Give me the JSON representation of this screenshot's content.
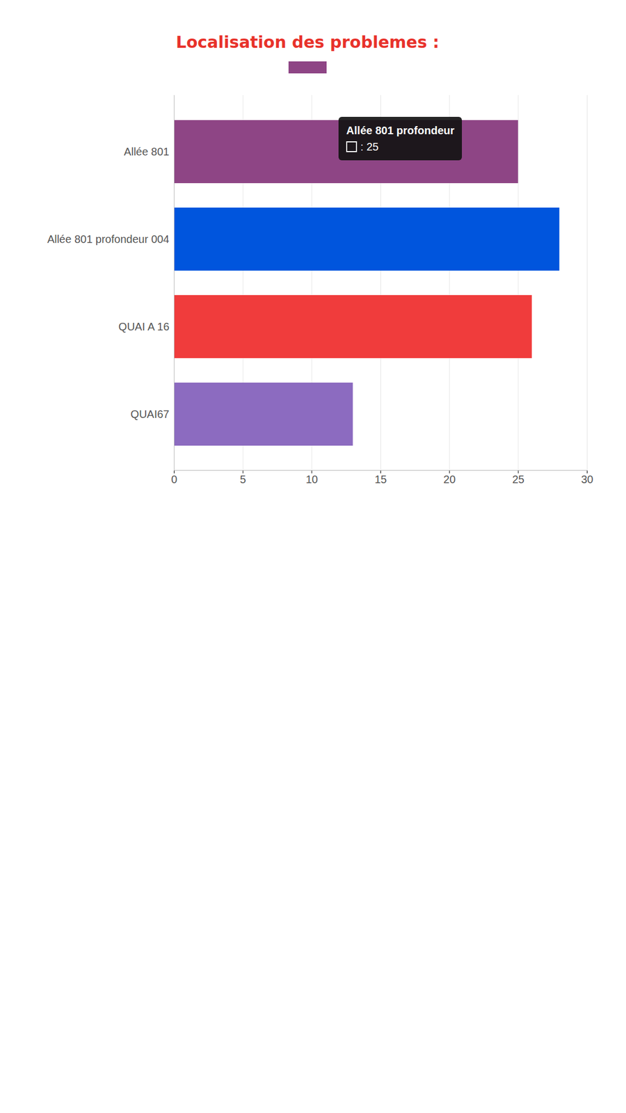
{
  "chart_data": {
    "type": "bar",
    "title": "Localisation des problemes :",
    "orientation": "horizontal",
    "categories": [
      "Allée 801",
      "Allée 801 profondeur 004",
      "QUAI A 16",
      "QUAI67"
    ],
    "values": [
      25,
      28,
      26,
      13
    ],
    "colors": [
      "#8e4585",
      "#0055dd",
      "#f03c3c",
      "#8c6bc0"
    ],
    "legend": "top",
    "xlim": [
      0,
      30
    ],
    "xticks": [
      0,
      5,
      10,
      15,
      20,
      25,
      30
    ],
    "grid": true,
    "annotations": [
      {
        "text": "Allée 801 profondeur",
        "label": ": 25"
      }
    ]
  }
}
